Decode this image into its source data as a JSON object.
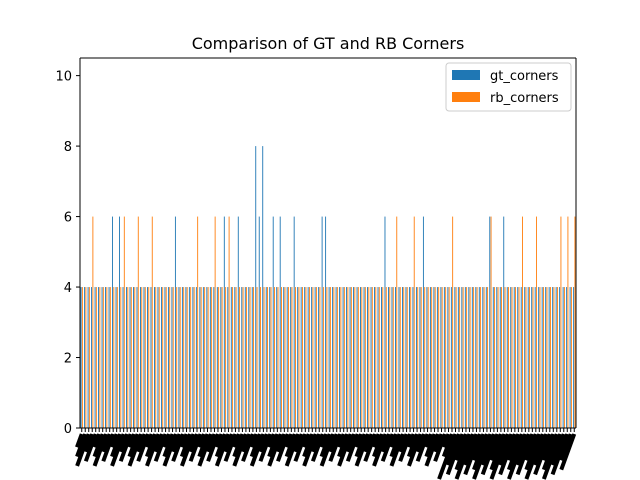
{
  "chart_data": {
    "type": "bar",
    "title": "Comparison of GT and RB Corners",
    "xlabel": "",
    "ylabel": "",
    "ylim": [
      0,
      10.5
    ],
    "yticks": [
      0,
      2,
      4,
      6,
      8,
      10
    ],
    "x_tick_labels_note": "x-axis has ~140 category tick labels that are rotated and overlap into an unreadable black band",
    "series": [
      {
        "name": "gt_corners",
        "color": "#1f77b4",
        "values": [
          4,
          4,
          4,
          4,
          4,
          4,
          4,
          4,
          4,
          6,
          4,
          6,
          4,
          4,
          4,
          4,
          4,
          4,
          4,
          4,
          4,
          4,
          4,
          4,
          4,
          4,
          4,
          6,
          4,
          4,
          4,
          4,
          4,
          4,
          4,
          4,
          4,
          4,
          4,
          4,
          4,
          6,
          4,
          4,
          4,
          6,
          4,
          4,
          4,
          4,
          8,
          6,
          8,
          4,
          4,
          6,
          4,
          6,
          4,
          4,
          4,
          6,
          4,
          4,
          4,
          4,
          4,
          4,
          4,
          6,
          6,
          4,
          4,
          4,
          4,
          4,
          4,
          4,
          4,
          4,
          4,
          4,
          4,
          4,
          4,
          4,
          4,
          6,
          4,
          4,
          4,
          4,
          4,
          4,
          4,
          4,
          4,
          4,
          6,
          4,
          4,
          4,
          4,
          4,
          4,
          4,
          4,
          4,
          4,
          4,
          4,
          4,
          4,
          4,
          4,
          4,
          4,
          6,
          4,
          4,
          4,
          6,
          4,
          4,
          4,
          4,
          4,
          4,
          4,
          4,
          4,
          4,
          4,
          4,
          4,
          4,
          4,
          4,
          4,
          4,
          4,
          4
        ]
      },
      {
        "name": "rb_corners",
        "color": "#ff7f0e",
        "values": [
          4,
          4,
          4,
          6,
          4,
          4,
          4,
          4,
          4,
          4,
          4,
          4,
          6,
          4,
          4,
          4,
          6,
          4,
          4,
          4,
          6,
          4,
          4,
          4,
          4,
          4,
          4,
          4,
          4,
          4,
          4,
          4,
          4,
          6,
          4,
          4,
          4,
          4,
          6,
          4,
          4,
          4,
          6,
          4,
          4,
          4,
          4,
          4,
          4,
          4,
          4,
          4,
          4,
          4,
          4,
          4,
          4,
          4,
          4,
          4,
          4,
          4,
          4,
          4,
          4,
          4,
          4,
          4,
          4,
          4,
          4,
          4,
          4,
          4,
          4,
          4,
          4,
          4,
          4,
          4,
          4,
          4,
          4,
          4,
          4,
          4,
          4,
          4,
          4,
          4,
          6,
          4,
          4,
          4,
          4,
          6,
          4,
          4,
          4,
          4,
          4,
          4,
          4,
          4,
          4,
          4,
          6,
          4,
          4,
          4,
          4,
          4,
          4,
          4,
          4,
          4,
          4,
          6,
          4,
          4,
          4,
          4,
          4,
          4,
          4,
          4,
          6,
          4,
          4,
          4,
          6,
          4,
          4,
          4,
          4,
          4,
          4,
          6,
          4,
          6,
          4,
          6
        ]
      }
    ],
    "legend": {
      "placement": "upper right",
      "entries": [
        "gt_corners",
        "rb_corners"
      ]
    }
  }
}
